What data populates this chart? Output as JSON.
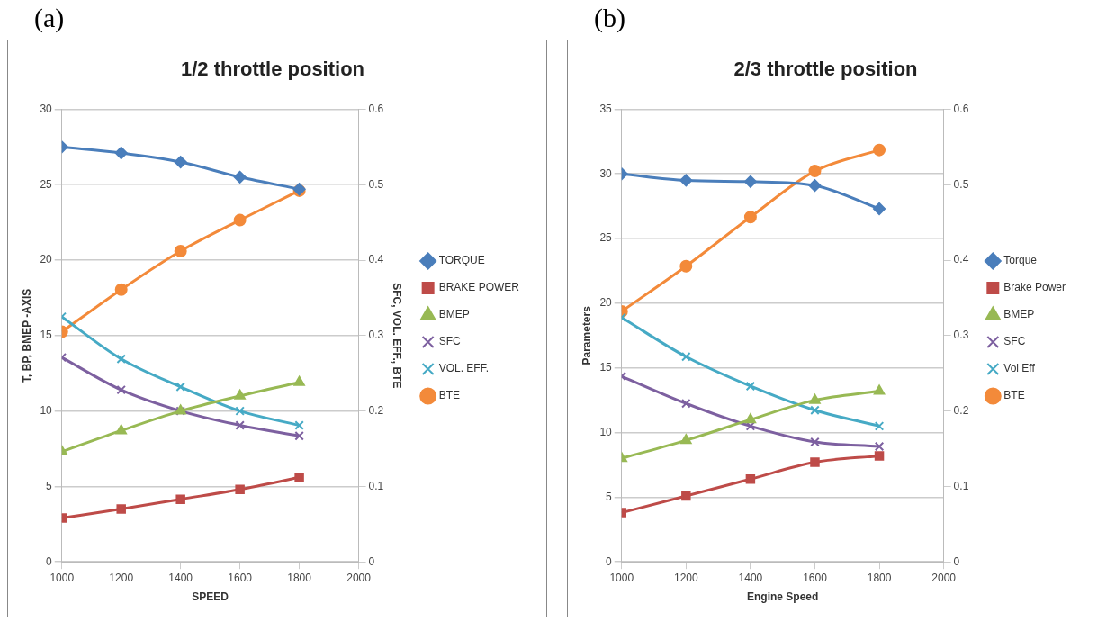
{
  "chart_data": [
    {
      "type": "line",
      "title": "1/2 throttle position",
      "xlabel": "SPEED",
      "ylabel": "T, BP, BMEP -AXIS",
      "y2label": "SFC, VOL. EFF., BTE",
      "annotations": [
        "(a)"
      ],
      "x": [
        1000,
        1200,
        1400,
        1600,
        1800
      ],
      "xlim": [
        1000,
        2000
      ],
      "xticks": [
        1000,
        1200,
        1400,
        1600,
        1800,
        2000
      ],
      "ylim": [
        0,
        30
      ],
      "yticks": [
        0,
        5,
        10,
        15,
        20,
        25,
        30
      ],
      "y2lim": [
        0,
        0.6
      ],
      "y2ticks": [
        0,
        0.1,
        0.2,
        0.3,
        0.4,
        0.5,
        0.6
      ],
      "grid": "y",
      "legend": "right",
      "series": [
        {
          "name": "TORQUE",
          "color": "#4a7ebb",
          "marker": "diamond",
          "values": [
            27.5,
            27.1,
            26.5,
            25.5,
            24.7
          ]
        },
        {
          "name": "BRAKE POWER",
          "color": "#be4b48",
          "marker": "square",
          "values": [
            2.9,
            3.5,
            4.15,
            4.8,
            5.6
          ]
        },
        {
          "name": "BMEP",
          "color": "#98b954",
          "marker": "triangle",
          "values": [
            7.3,
            8.7,
            10.0,
            11.0,
            11.9
          ]
        },
        {
          "name": "SFC",
          "color": "#7d60a0",
          "marker": "cross",
          "axis": "y2",
          "values": [
            0.271,
            0.228,
            0.2,
            0.181,
            0.167
          ]
        },
        {
          "name": "VOL. EFF.",
          "color": "#46aac5",
          "marker": "cross",
          "axis": "y2",
          "values": [
            0.325,
            0.269,
            0.232,
            0.2,
            0.181
          ]
        },
        {
          "name": "BTE",
          "color": "#f38a3a",
          "marker": "circle",
          "axis": "y2",
          "values": [
            0.305,
            0.361,
            0.412,
            0.453,
            0.492
          ]
        }
      ]
    },
    {
      "type": "line",
      "title": "2/3 throttle position",
      "xlabel": "Engine Speed",
      "ylabel": "Parameters",
      "annotations": [
        "(b)"
      ],
      "x": [
        1000,
        1200,
        1400,
        1600,
        1800
      ],
      "xlim": [
        1000,
        2000
      ],
      "xticks": [
        1000,
        1200,
        1400,
        1600,
        1800,
        2000
      ],
      "ylim": [
        0,
        35
      ],
      "yticks": [
        0,
        5,
        10,
        15,
        20,
        25,
        30,
        35
      ],
      "y2lim": [
        0,
        0.6
      ],
      "y2ticks": [
        0,
        0.1,
        0.2,
        0.3,
        0.4,
        0.5,
        0.6
      ],
      "grid": "y",
      "legend": "right",
      "series": [
        {
          "name": "Torque",
          "color": "#4a7ebb",
          "marker": "diamond",
          "values": [
            30.0,
            29.5,
            29.4,
            29.1,
            27.3
          ]
        },
        {
          "name": "Brake Power",
          "color": "#be4b48",
          "marker": "square",
          "values": [
            3.8,
            5.1,
            6.4,
            7.7,
            8.2
          ]
        },
        {
          "name": "BMEP",
          "color": "#98b954",
          "marker": "triangle",
          "values": [
            8.0,
            9.4,
            11.0,
            12.5,
            13.2
          ]
        },
        {
          "name": "SFC",
          "color": "#7d60a0",
          "marker": "cross",
          "axis": "y2",
          "values": [
            0.246,
            0.21,
            0.18,
            0.159,
            0.153
          ]
        },
        {
          "name": "Vol Eff",
          "color": "#46aac5",
          "marker": "cross",
          "axis": "y2",
          "values": [
            0.324,
            0.272,
            0.233,
            0.201,
            0.18
          ]
        },
        {
          "name": "BTE",
          "color": "#f38a3a",
          "marker": "circle",
          "axis": "y2",
          "values": [
            0.332,
            0.392,
            0.457,
            0.518,
            0.546
          ]
        }
      ]
    }
  ]
}
